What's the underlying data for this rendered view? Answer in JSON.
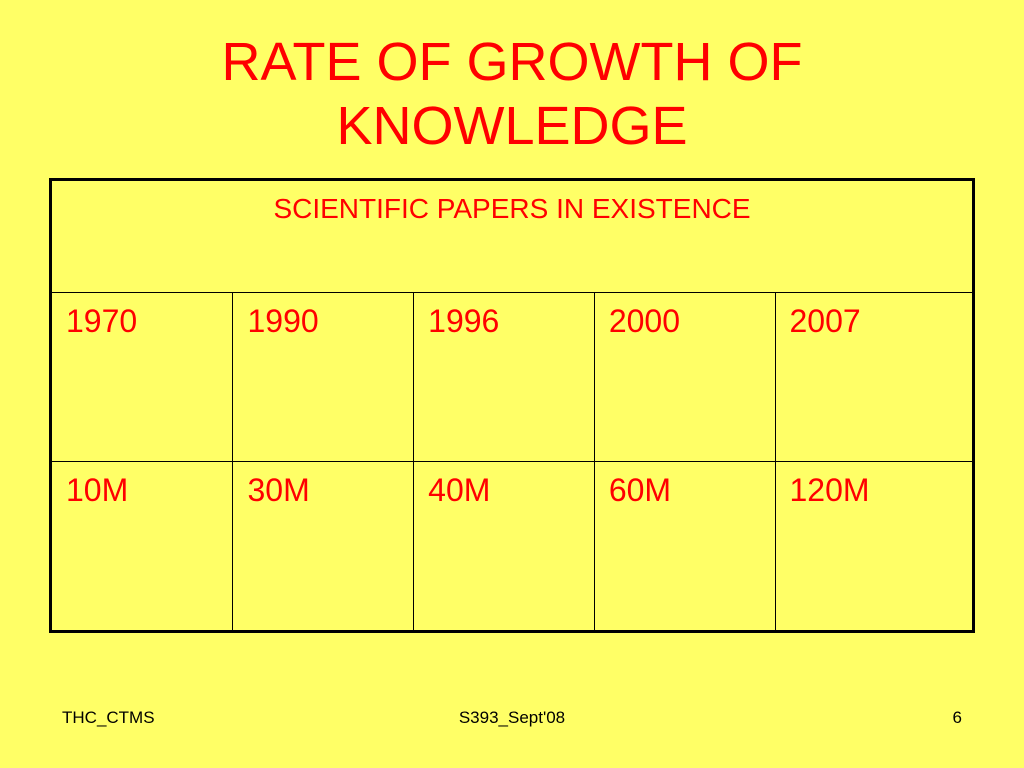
{
  "slide": {
    "title_line1": "RATE OF GROWTH OF",
    "title_line2": "KNOWLEDGE"
  },
  "table": {
    "header": "SCIENTIFIC PAPERS IN EXISTENCE",
    "years": [
      "1970",
      "1990",
      "1996",
      "2000",
      "2007"
    ],
    "counts": [
      "10M",
      "30M",
      "40M",
      "60M",
      "120M"
    ]
  },
  "footer": {
    "left": "THC_CTMS",
    "center": "S393_Sept'08",
    "right": "6"
  },
  "colors": {
    "background": "#ffff66",
    "text_accent": "#ff0000",
    "border": "#000000"
  }
}
